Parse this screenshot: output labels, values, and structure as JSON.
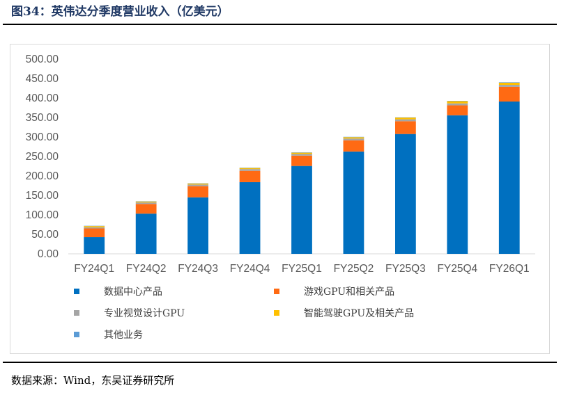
{
  "figure": {
    "title": "图34：英伟达分季度营业收入（亿美元）",
    "source": "数据来源：Wind，东吴证券研究所"
  },
  "chart_data": {
    "type": "bar",
    "stacked": true,
    "categories": [
      "FY24Q1",
      "FY24Q2",
      "FY24Q3",
      "FY24Q4",
      "FY25Q1",
      "FY25Q2",
      "FY25Q3",
      "FY25Q4",
      "FY26Q1"
    ],
    "ylim": [
      0,
      500
    ],
    "ytick_labels": [
      "0.00",
      "50.00",
      "100.00",
      "150.00",
      "200.00",
      "250.00",
      "300.00",
      "350.00",
      "400.00",
      "450.00",
      "500.00"
    ],
    "grid": false,
    "legend_position": "bottom",
    "series": [
      {
        "name": "数据中心产品",
        "color": "#0070c0",
        "values": [
          42.8,
          103.2,
          145.1,
          184.0,
          225.6,
          262.7,
          307.7,
          355.8,
          391.1
        ]
      },
      {
        "name": "游戏GPU和相关产品",
        "color": "#ff6a13",
        "values": [
          22.4,
          24.9,
          28.6,
          29.0,
          26.5,
          28.8,
          32.8,
          25.4,
          37.6
        ]
      },
      {
        "name": "专业视觉设计GPU",
        "color": "#a5a5a5",
        "values": [
          3.0,
          3.8,
          4.2,
          4.6,
          4.3,
          4.5,
          4.9,
          5.1,
          5.1
        ]
      },
      {
        "name": "智能驾驶GPU及相关产品",
        "color": "#ffc000",
        "values": [
          3.0,
          2.5,
          2.6,
          2.8,
          3.3,
          3.5,
          4.5,
          5.7,
          5.7
        ]
      },
      {
        "name": "其他业务",
        "color": "#5b9bd5",
        "values": [
          0.8,
          0.7,
          0.7,
          0.9,
          0.8,
          0.9,
          0.7,
          0.8,
          1.1
        ]
      }
    ]
  }
}
